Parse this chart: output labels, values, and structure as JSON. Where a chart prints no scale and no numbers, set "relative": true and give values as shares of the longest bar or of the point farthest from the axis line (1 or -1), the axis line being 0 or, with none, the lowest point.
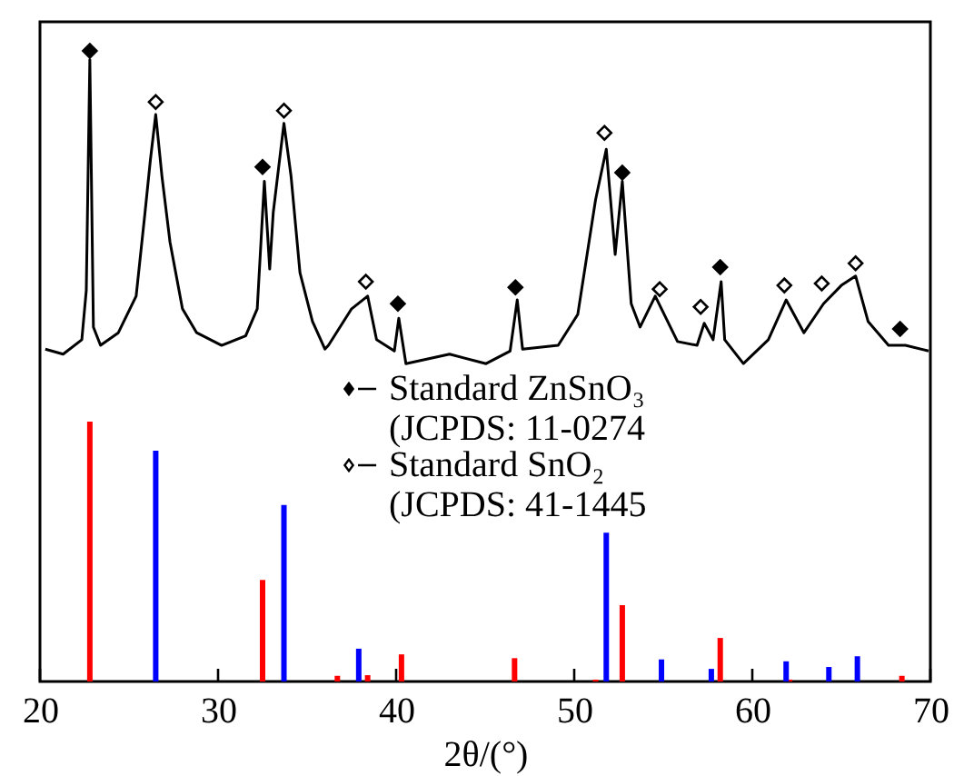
{
  "chart_data": {
    "type": "line",
    "relative": true,
    "xlabel": "2θ/(°)",
    "xlim": [
      20,
      70
    ],
    "xticks": [
      20,
      30,
      40,
      50,
      60,
      70
    ],
    "legend": "center",
    "series": [
      {
        "color": "#000000",
        "line_style": "solid",
        "marker": "none",
        "x": [
          20.3,
          21.3,
          22.35,
          22.6,
          22.8,
          23.0,
          23.4,
          24.4,
          25.4,
          25.9,
          26.2,
          26.5,
          26.85,
          27.3,
          28.0,
          28.8,
          30.2,
          31.55,
          32.2,
          32.6,
          32.9,
          33.1,
          33.7,
          34.1,
          34.6,
          35.3,
          36.0,
          36.2,
          37.5,
          38.4,
          38.9,
          39.9,
          40.15,
          40.55,
          43.0,
          45.05,
          46.4,
          46.8,
          47.1,
          49.1,
          50.2,
          51.2,
          51.8,
          52.3,
          52.7,
          53.2,
          53.7,
          54.55,
          55.8,
          56.9,
          57.3,
          57.8,
          58.25,
          58.45,
          59.5,
          60.9,
          61.9,
          62.9,
          64.0,
          65.0,
          65.8,
          66.5,
          67.65,
          68.6,
          69.9
        ],
        "values": [
          0.527,
          0.519,
          0.542,
          0.62,
          0.986,
          0.562,
          0.533,
          0.553,
          0.611,
          0.744,
          0.827,
          0.899,
          0.801,
          0.697,
          0.591,
          0.553,
          0.533,
          0.548,
          0.591,
          0.793,
          0.654,
          0.744,
          0.885,
          0.801,
          0.648,
          0.571,
          0.527,
          0.533,
          0.591,
          0.611,
          0.542,
          0.524,
          0.576,
          0.504,
          0.519,
          0.504,
          0.524,
          0.605,
          0.527,
          0.533,
          0.582,
          0.764,
          0.844,
          0.677,
          0.793,
          0.599,
          0.562,
          0.611,
          0.539,
          0.533,
          0.568,
          0.542,
          0.634,
          0.542,
          0.504,
          0.542,
          0.605,
          0.553,
          0.599,
          0.628,
          0.643,
          0.571,
          0.533,
          0.533,
          0.524
        ]
      },
      {
        "type": "bar",
        "color": "#ff0000",
        "x": [
          22.8,
          32.5,
          36.7,
          38.4,
          40.3,
          46.65,
          51.2,
          52.7,
          58.2,
          62.1,
          68.4
        ],
        "values": [
          0.412,
          0.161,
          0.009,
          0.01,
          0.043,
          0.037,
          0.003,
          0.121,
          0.069,
          0.003,
          0.009
        ]
      },
      {
        "type": "bar",
        "color": "#0000ff",
        "x": [
          26.5,
          33.7,
          37.9,
          51.8,
          54.9,
          57.7,
          61.9,
          64.3,
          65.9
        ],
        "values": [
          0.366,
          0.28,
          0.052,
          0.236,
          0.035,
          0.02,
          0.032,
          0.023,
          0.04
        ]
      },
      {
        "type": "scatter",
        "name": "Standard ZnSnO₃\n(JCPDS: 11-0274",
        "color": "#000000",
        "marker": "diamond",
        "x": [
          22.8,
          32.5,
          40.1,
          46.7,
          52.7,
          58.2,
          68.3
        ],
        "values": [
          1.0,
          0.816,
          0.599,
          0.625,
          0.807,
          0.657,
          0.559
        ]
      },
      {
        "type": "scatter",
        "name": "Standard SnO₂\n(JCPDS: 41-1445",
        "color": "#000000",
        "marker": "diamond",
        "x": [
          26.5,
          33.7,
          38.3,
          51.7,
          54.8,
          57.1,
          61.8,
          63.9,
          65.8
        ],
        "values": [
          0.919,
          0.905,
          0.634,
          0.87,
          0.622,
          0.594,
          0.628,
          0.631,
          0.663
        ]
      }
    ]
  }
}
